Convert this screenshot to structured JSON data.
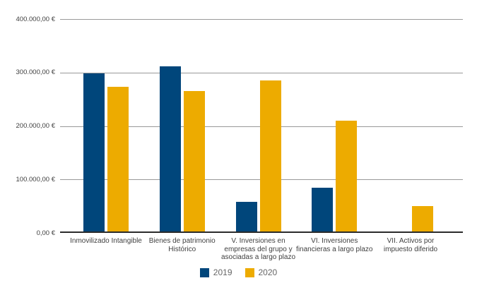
{
  "chart_data": {
    "type": "bar",
    "title": "",
    "categories": [
      "Inmovilizado Intangible",
      "Bienes de patrimonio\nHistórico",
      "V. Inversiones en\nempresas del grupo y\nasociadas a largo plazo",
      "VI. Inversiones\nfinancieras a largo plazo",
      "VII. Activos por\nimpuesto diferido"
    ],
    "series": [
      {
        "name": "2019",
        "color": "#00467B",
        "values": [
          298000,
          311000,
          58000,
          84000,
          3000
        ]
      },
      {
        "name": "2020",
        "color": "#EDAB00",
        "values": [
          273000,
          265000,
          285000,
          210000,
          50000
        ]
      }
    ],
    "ylim": [
      0,
      400000
    ],
    "ytick_values": [
      0,
      100000,
      200000,
      300000,
      400000
    ],
    "ytick_labels": [
      "0,00 €",
      "100.000,00 €",
      "200.000,00 €",
      "300.000,00 €",
      "400.000,00 €"
    ],
    "grid": true,
    "legend_position": "bottom"
  },
  "colors": {
    "series_2019": "#00467B",
    "series_2020": "#EDAB00",
    "gridline": "#999999",
    "axis_line": "#2B2B2B",
    "tick_text": "#404040",
    "legend_text": "#666666",
    "background": "#FFFFFF"
  }
}
